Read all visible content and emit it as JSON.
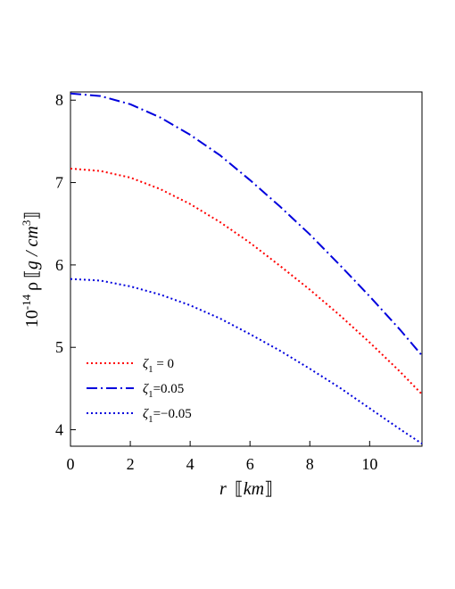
{
  "chart_data": {
    "type": "line",
    "xlabel_var": "r",
    "xlabel_unit": "km",
    "ylabel_prefix": "10",
    "ylabel_exp": "-14",
    "ylabel_var": "ρ",
    "ylabel_unit_a": "g / cm",
    "ylabel_unit_exp": "3",
    "xlim": [
      0,
      11.75
    ],
    "ylim": [
      3.8,
      8.1
    ],
    "xticks": [
      0,
      2,
      4,
      6,
      8,
      10
    ],
    "yticks": [
      4,
      5,
      6,
      7,
      8
    ],
    "grid": false,
    "legend_position": "bottom-left",
    "series": [
      {
        "name": "ζ₁ = 0",
        "legend_sym": "ζ",
        "legend_sub": "1",
        "legend_val": " = 0",
        "color": "#ff0000",
        "dash": "2,3",
        "x": [
          0,
          1,
          2,
          3,
          4,
          5,
          6,
          7,
          8,
          9,
          10,
          11,
          11.75
        ],
        "y": [
          7.17,
          7.14,
          7.06,
          6.92,
          6.74,
          6.52,
          6.27,
          5.99,
          5.7,
          5.39,
          5.06,
          4.71,
          4.43
        ]
      },
      {
        "name": "ζ₁=0.05",
        "legend_sym": "ζ",
        "legend_sub": "1",
        "legend_val": "=0.05",
        "color": "#0000dd",
        "dash": "12,4,2,4",
        "x": [
          0,
          1,
          2,
          3,
          4,
          5,
          6,
          7,
          8,
          9,
          10,
          11,
          11.75
        ],
        "y": [
          8.08,
          8.05,
          7.95,
          7.79,
          7.58,
          7.33,
          7.03,
          6.71,
          6.37,
          6.0,
          5.62,
          5.22,
          4.9
        ]
      },
      {
        "name": "ζ₁=−0.05",
        "legend_sym": "ζ",
        "legend_sub": "1",
        "legend_val": "=−0.05",
        "color": "#0000dd",
        "dash": "2,3",
        "x": [
          0,
          1,
          2,
          3,
          4,
          5,
          6,
          7,
          8,
          9,
          10,
          11,
          11.75
        ],
        "y": [
          5.83,
          5.81,
          5.74,
          5.64,
          5.51,
          5.35,
          5.16,
          4.96,
          4.74,
          4.51,
          4.26,
          4.01,
          3.83
        ]
      }
    ]
  }
}
